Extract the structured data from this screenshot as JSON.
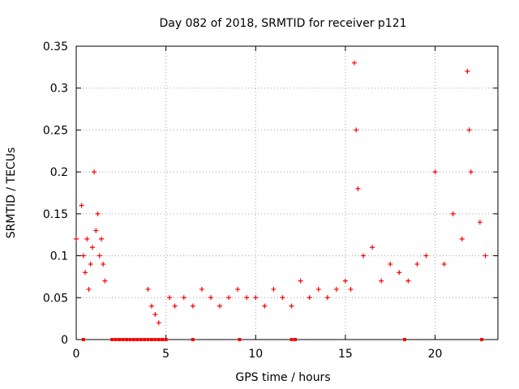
{
  "chart_data": {
    "type": "scatter",
    "title": "Day 082 of 2018, SRMTID for receiver p121",
    "xlabel": "GPS time / hours",
    "ylabel": "SRMTID / TECUs",
    "xlim": [
      0,
      23.5
    ],
    "ylim": [
      0,
      0.35
    ],
    "xticks": [
      0,
      5,
      10,
      15,
      20
    ],
    "xtick_labels": [
      "0",
      "5",
      "10",
      "15",
      "20"
    ],
    "yticks": [
      0,
      0.05,
      0.1,
      0.15,
      0.2,
      0.25,
      0.3,
      0.35
    ],
    "ytick_labels": [
      "0",
      "0.05",
      "0.1",
      "0.15",
      "0.2",
      "0.25",
      "0.3",
      "0.35"
    ],
    "grid": true,
    "color": "#ff0000",
    "marker": "plus",
    "gap_marker": "square",
    "series": [
      {
        "name": "SRMTID",
        "x": [
          0.0,
          0.3,
          0.4,
          0.5,
          0.6,
          0.7,
          0.8,
          0.9,
          1.0,
          1.1,
          1.2,
          1.3,
          1.4,
          1.5,
          1.6,
          4.0,
          4.2,
          4.4,
          4.6,
          5.2,
          5.5,
          6.0,
          6.5,
          7.0,
          7.5,
          8.0,
          8.5,
          9.0,
          9.5,
          10.0,
          10.5,
          11.0,
          11.5,
          12.0,
          12.5,
          13.0,
          13.5,
          14.0,
          14.5,
          15.0,
          15.3,
          15.5,
          15.6,
          15.7,
          16.0,
          16.5,
          17.0,
          17.5,
          18.0,
          18.5,
          19.0,
          19.5,
          20.0,
          20.5,
          21.0,
          21.5,
          21.8,
          21.9,
          22.0,
          22.5,
          22.8
        ],
        "y": [
          0.12,
          0.16,
          0.1,
          0.08,
          0.12,
          0.06,
          0.09,
          0.11,
          0.2,
          0.13,
          0.15,
          0.1,
          0.12,
          0.09,
          0.07,
          0.06,
          0.04,
          0.03,
          0.02,
          0.05,
          0.04,
          0.05,
          0.04,
          0.06,
          0.05,
          0.04,
          0.05,
          0.06,
          0.05,
          0.05,
          0.04,
          0.06,
          0.05,
          0.04,
          0.07,
          0.05,
          0.06,
          0.05,
          0.06,
          0.07,
          0.06,
          0.33,
          0.25,
          0.18,
          0.1,
          0.11,
          0.07,
          0.09,
          0.08,
          0.07,
          0.09,
          0.1,
          0.2,
          0.09,
          0.15,
          0.12,
          0.32,
          0.25,
          0.2,
          0.14,
          0.1
        ]
      }
    ],
    "gap_x": [
      0.4,
      2.0,
      2.2,
      2.4,
      2.6,
      2.8,
      3.0,
      3.2,
      3.4,
      3.6,
      3.8,
      4.0,
      4.2,
      4.4,
      4.6,
      4.8,
      5.0,
      6.5,
      9.1,
      12.0,
      12.2,
      18.3,
      22.6
    ]
  }
}
